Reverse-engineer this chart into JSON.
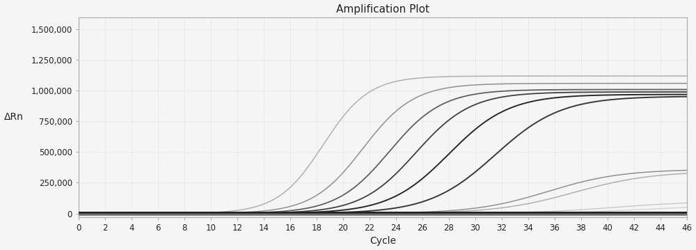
{
  "title": "Amplification Plot",
  "xlabel": "Cycle",
  "ylabel": "ΔRn",
  "xlim": [
    0,
    46
  ],
  "ylim": [
    -30000,
    1600000
  ],
  "xticks": [
    0,
    2,
    4,
    6,
    8,
    10,
    12,
    14,
    16,
    18,
    20,
    22,
    24,
    26,
    28,
    30,
    32,
    34,
    36,
    38,
    40,
    42,
    44,
    46
  ],
  "xtick_labels": [
    "0",
    "2",
    "4",
    "6",
    "8",
    "10",
    "12",
    "14",
    "16",
    "18",
    "20",
    "22",
    "24",
    "26",
    "28",
    "30",
    "32",
    "34",
    "36",
    "38",
    "40",
    "42",
    "44",
    "46"
  ],
  "yticks": [
    0,
    250000,
    500000,
    750000,
    1000000,
    1250000,
    1500000
  ],
  "ytick_labels": [
    "0",
    "250,000",
    "500,000",
    "750,000",
    "1,000,000",
    "1,250,000",
    "1,500,000"
  ],
  "curves": [
    {
      "midpoint": 18.5,
      "plateau": 1120000,
      "steepness": 0.58,
      "color": "#b0b0b0",
      "lw": 1.1
    },
    {
      "midpoint": 21.5,
      "plateau": 1060000,
      "steepness": 0.52,
      "color": "#909090",
      "lw": 1.1
    },
    {
      "midpoint": 23.5,
      "plateau": 1010000,
      "steepness": 0.5,
      "color": "#606060",
      "lw": 1.3
    },
    {
      "midpoint": 25.5,
      "plateau": 990000,
      "steepness": 0.48,
      "color": "#404040",
      "lw": 1.3
    },
    {
      "midpoint": 28.0,
      "plateau": 970000,
      "steepness": 0.44,
      "color": "#282828",
      "lw": 1.4
    },
    {
      "midpoint": 31.5,
      "plateau": 955000,
      "steepness": 0.4,
      "color": "#383838",
      "lw": 1.4
    },
    {
      "midpoint": 35.5,
      "plateau": 360000,
      "steepness": 0.36,
      "color": "#909090",
      "lw": 1.1
    },
    {
      "midpoint": 37.5,
      "plateau": 345000,
      "steepness": 0.34,
      "color": "#b0b0b0",
      "lw": 1.1
    },
    {
      "midpoint": 40.5,
      "plateau": 100000,
      "steepness": 0.32,
      "color": "#c8c8c8",
      "lw": 1.0
    },
    {
      "midpoint": 43.0,
      "plateau": 70000,
      "steepness": 0.3,
      "color": "#d4d4d4",
      "lw": 1.0
    }
  ],
  "flat_curves": [
    {
      "value": 6000,
      "color": "#181818",
      "lw": 1.5
    },
    {
      "value": 3000,
      "color": "#303030",
      "lw": 1.2
    },
    {
      "value": 1000,
      "color": "#484848",
      "lw": 1.0
    },
    {
      "value": -2000,
      "color": "#606060",
      "lw": 1.0
    },
    {
      "value": -6000,
      "color": "#787878",
      "lw": 1.0
    },
    {
      "value": -12000,
      "color": "#909090",
      "lw": 0.8
    },
    {
      "value": 9000,
      "color": "#202020",
      "lw": 1.5
    }
  ],
  "background_color": "#f5f5f5",
  "grid_color": "#d8d8d8",
  "spine_color": "#aaaaaa",
  "title_fontsize": 11,
  "label_fontsize": 10,
  "tick_fontsize": 8.5
}
